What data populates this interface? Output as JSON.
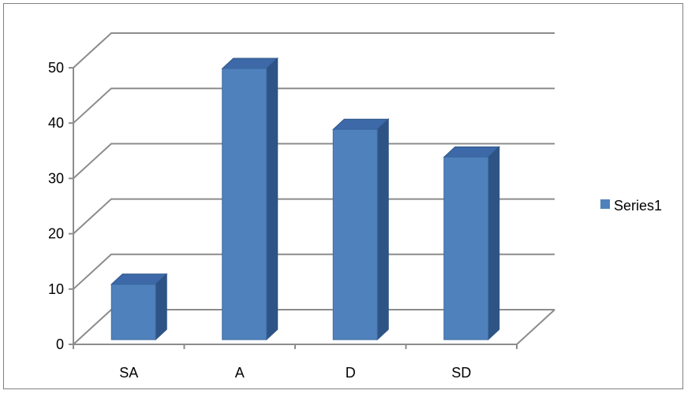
{
  "chart_data": {
    "type": "bar",
    "categories": [
      "SA",
      "A",
      "D",
      "SD"
    ],
    "series": [
      {
        "name": "Series1",
        "values": [
          10,
          49,
          38,
          33
        ],
        "color": "#4F81BD"
      }
    ],
    "ylim": [
      0,
      50
    ],
    "yticks": [
      0,
      10,
      20,
      30,
      40,
      50
    ],
    "grid": true,
    "legend_position": "right",
    "style": "3d-column"
  }
}
